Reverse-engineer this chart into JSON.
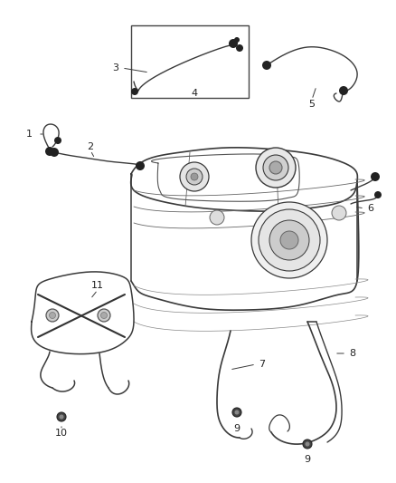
{
  "bg_color": "#ffffff",
  "line_color": "#3a3a3a",
  "label_color": "#222222",
  "fig_width": 4.38,
  "fig_height": 5.33,
  "dpi": 100
}
